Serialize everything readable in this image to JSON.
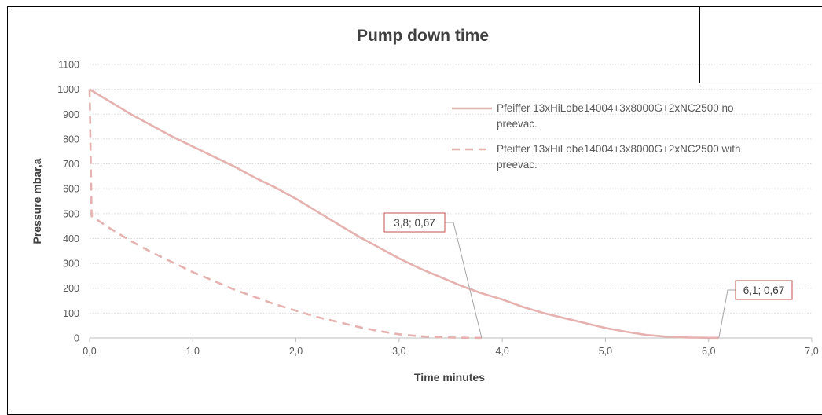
{
  "chart_data": {
    "type": "line",
    "title": "Pump down time",
    "xlabel": "Time minutes",
    "ylabel": "Pressure mbar,a",
    "xlim": [
      0,
      7
    ],
    "ylim": [
      0,
      1100
    ],
    "x_ticks": [
      0,
      1,
      2,
      3,
      4,
      5,
      6,
      7
    ],
    "x_tick_labels": [
      "0,0",
      "1,0",
      "2,0",
      "3,0",
      "4,0",
      "5,0",
      "6,0",
      "7,0"
    ],
    "y_ticks": [
      0,
      100,
      200,
      300,
      400,
      500,
      600,
      700,
      800,
      900,
      1000,
      1100
    ],
    "y_tick_labels": [
      "0",
      "100",
      "200",
      "300",
      "400",
      "500",
      "600",
      "700",
      "800",
      "900",
      "1000",
      "1100"
    ],
    "grid": "horizontal dotted",
    "legend_position": "top-right",
    "series": [
      {
        "name": "Pfeiffer 13xHiLobe14004+3x8000G+2xNC2500 no preevac.",
        "name_lines": [
          "Pfeiffer 13xHiLobe14004+3x8000G+2xNC2500 no",
          "preevac."
        ],
        "style": "solid",
        "color": "#e6b2b0",
        "points": [
          [
            0.0,
            1000
          ],
          [
            0.2,
            950
          ],
          [
            0.4,
            900
          ],
          [
            0.6,
            855
          ],
          [
            0.8,
            810
          ],
          [
            1.0,
            770
          ],
          [
            1.2,
            730
          ],
          [
            1.4,
            690
          ],
          [
            1.6,
            645
          ],
          [
            1.8,
            605
          ],
          [
            2.0,
            560
          ],
          [
            2.2,
            510
          ],
          [
            2.4,
            460
          ],
          [
            2.6,
            410
          ],
          [
            2.8,
            365
          ],
          [
            3.0,
            320
          ],
          [
            3.2,
            280
          ],
          [
            3.4,
            245
          ],
          [
            3.6,
            210
          ],
          [
            3.8,
            180
          ],
          [
            4.0,
            155
          ],
          [
            4.2,
            125
          ],
          [
            4.4,
            100
          ],
          [
            4.6,
            80
          ],
          [
            4.8,
            60
          ],
          [
            5.0,
            40
          ],
          [
            5.2,
            25
          ],
          [
            5.4,
            12
          ],
          [
            5.6,
            5
          ],
          [
            5.8,
            2
          ],
          [
            6.0,
            0.67
          ],
          [
            6.1,
            0.67
          ]
        ]
      },
      {
        "name": "Pfeiffer 13xHiLobe14004+3x8000G+2xNC2500 with preevac.",
        "name_lines": [
          "Pfeiffer 13xHiLobe14004+3x8000G+2xNC2500 with",
          "preevac."
        ],
        "style": "dashed",
        "color": "#e6b2b0",
        "points": [
          [
            0.0,
            1000
          ],
          [
            0.02,
            490
          ],
          [
            0.2,
            440
          ],
          [
            0.4,
            390
          ],
          [
            0.6,
            345
          ],
          [
            0.8,
            305
          ],
          [
            1.0,
            265
          ],
          [
            1.2,
            230
          ],
          [
            1.4,
            195
          ],
          [
            1.6,
            165
          ],
          [
            1.8,
            135
          ],
          [
            2.0,
            110
          ],
          [
            2.2,
            85
          ],
          [
            2.4,
            65
          ],
          [
            2.6,
            45
          ],
          [
            2.8,
            28
          ],
          [
            3.0,
            15
          ],
          [
            3.2,
            7
          ],
          [
            3.4,
            3
          ],
          [
            3.6,
            1
          ],
          [
            3.8,
            0.67
          ]
        ]
      }
    ],
    "annotations": [
      {
        "label": "3,8; 0,67",
        "x": 3.8,
        "y": 0.67
      },
      {
        "label": "6,1; 0,67",
        "x": 6.1,
        "y": 0.67
      }
    ]
  }
}
